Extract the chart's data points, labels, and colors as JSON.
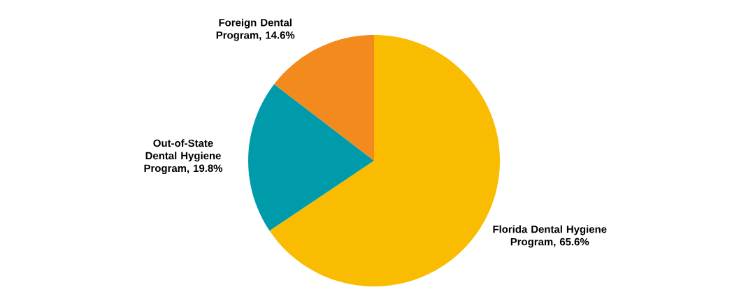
{
  "chart_data": {
    "type": "pie",
    "categories": [
      "Florida Dental Hygiene Program",
      "Out-of-State Dental Hygiene Program",
      "Foreign Dental Program"
    ],
    "values": [
      65.6,
      19.8,
      14.6
    ],
    "colors": [
      "#f9bc00",
      "#009baa",
      "#f28a1e"
    ],
    "value_labels": [
      "65.6%",
      "19.8%",
      "14.6%"
    ],
    "annotations": [
      ","
    ]
  }
}
